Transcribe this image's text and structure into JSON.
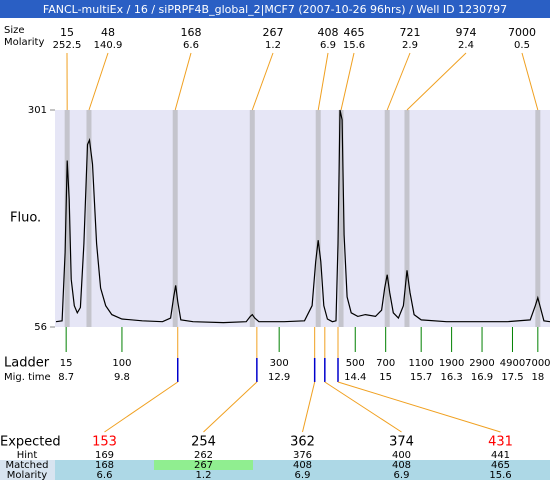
{
  "header": {
    "title": "FANCL-multiEx / 16 / siPRPF4B_global_2|MCF7 (2007-10-26 96hrs) / Well ID 1230797"
  },
  "chart_data": {
    "type": "line",
    "ylabel": "Fluo.",
    "ylim": [
      56,
      301
    ],
    "yticks": [
      56,
      301
    ],
    "xlim": [
      8.48,
      18.24
    ],
    "color": "#000000",
    "x": [
      8.5,
      8.62,
      8.68,
      8.72,
      8.76,
      8.8,
      8.86,
      8.92,
      8.98,
      9.05,
      9.12,
      9.16,
      9.22,
      9.3,
      9.38,
      9.48,
      9.6,
      9.8,
      10.2,
      10.6,
      10.76,
      10.82,
      10.86,
      10.9,
      10.96,
      11.2,
      11.8,
      12.25,
      12.33,
      12.37,
      12.42,
      12.5,
      13.0,
      13.4,
      13.55,
      13.62,
      13.67,
      13.72,
      13.78,
      13.85,
      13.95,
      14.02,
      14.06,
      14.1,
      14.14,
      14.18,
      14.24,
      14.32,
      14.45,
      14.6,
      14.8,
      14.92,
      14.98,
      15.03,
      15.08,
      15.15,
      15.25,
      15.35,
      15.42,
      15.48,
      15.56,
      15.7,
      16.2,
      16.8,
      17.4,
      17.85,
      17.95,
      18.0,
      18.05,
      18.12,
      18.24
    ],
    "values": [
      62,
      63,
      140,
      244,
      200,
      110,
      80,
      72,
      78,
      150,
      262,
      267,
      240,
      150,
      100,
      80,
      70,
      65,
      63,
      62,
      66,
      90,
      103,
      85,
      64,
      62,
      61,
      62,
      68,
      70,
      66,
      62,
      62,
      63,
      80,
      130,
      154,
      130,
      80,
      65,
      62,
      63,
      150,
      301,
      290,
      160,
      90,
      72,
      68,
      70,
      68,
      75,
      100,
      115,
      95,
      72,
      66,
      80,
      120,
      95,
      70,
      64,
      62,
      62,
      62,
      64,
      80,
      89,
      78,
      63,
      62
    ],
    "peaks": {
      "row_labels": [
        "Size",
        "Molarity"
      ],
      "x": [
        8.72,
        9.15,
        10.85,
        12.37,
        13.67,
        14.12,
        15.03,
        15.42,
        18.0
      ],
      "sizes": [
        15,
        48,
        168,
        267,
        408,
        465,
        721,
        974,
        7000
      ],
      "molarity": [
        252.5,
        140.9,
        6.6,
        1.2,
        6.9,
        15.6,
        2.9,
        2.4,
        0.5
      ]
    },
    "ladder": {
      "label": "Ladder",
      "time_label": "Mig. time",
      "sizes": [
        15,
        100,
        300,
        500,
        700,
        1100,
        1900,
        2900,
        4900,
        7000
      ],
      "times": [
        8.7,
        9.8,
        12.9,
        14.4,
        15,
        15.7,
        16.3,
        16.9,
        17.5,
        18
      ]
    },
    "expected_x": [
      10.9,
      12.46,
      13.6,
      13.8,
      14.06
    ]
  },
  "expected_table": {
    "row_labels": [
      "Expected",
      "Hint",
      "Matched",
      "Molarity"
    ],
    "expected": [
      153,
      254,
      362,
      374,
      431
    ],
    "expected_colors": [
      "#ff0000",
      "#000000",
      "#000000",
      "#000000",
      "#ff0000"
    ],
    "hint": [
      169,
      262,
      376,
      400,
      441
    ],
    "matched": [
      168,
      267,
      408,
      408,
      465
    ],
    "matched_colors": [
      "#add8e6",
      "#90ee90",
      "#add8e6",
      "#add8e6",
      "#add8e6"
    ],
    "molarity": [
      6.6,
      1.2,
      6.9,
      6.9,
      15.6
    ]
  }
}
